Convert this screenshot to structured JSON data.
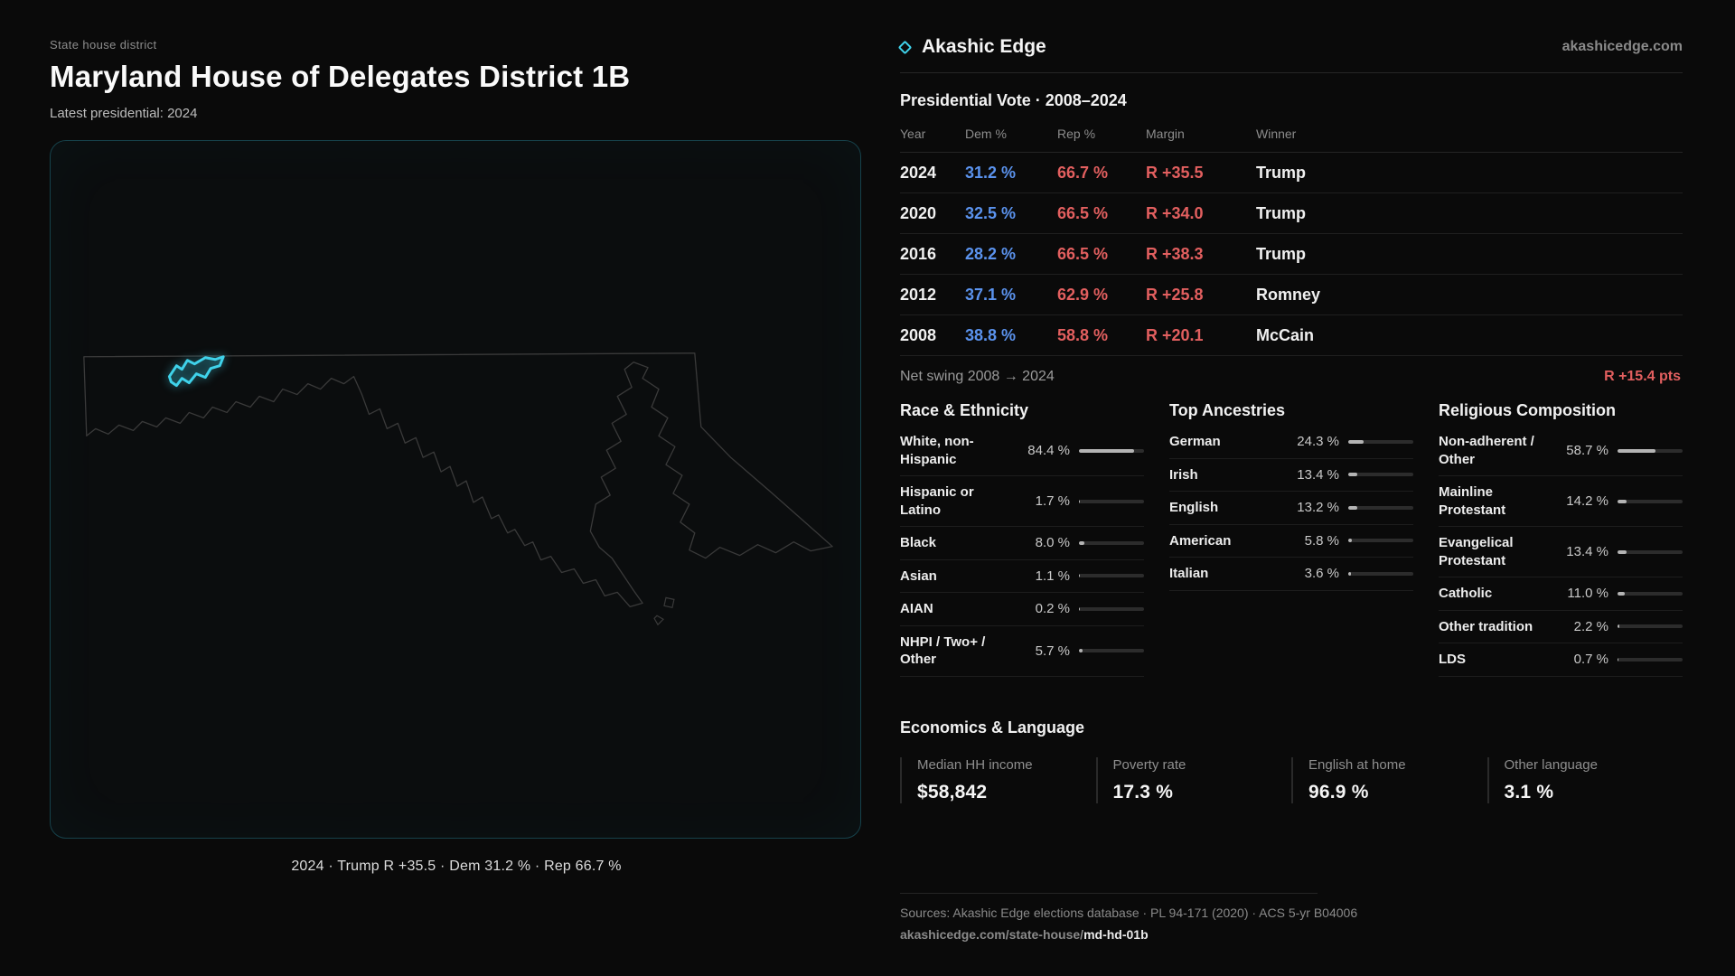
{
  "colors": {
    "accent_cyan": "#3fd2ea",
    "dem_blue": "#5b93ee",
    "rep_red": "#e25f5f"
  },
  "hero": {
    "eyebrow": "State house district",
    "title": "Maryland House of Delegates District 1B",
    "subtitle": "Latest presidential: 2024",
    "map_caption": "2024 · Trump R +35.5 · Dem 31.2 % · Rep 66.7 %"
  },
  "brand": {
    "name": "Akashic Edge",
    "domain": "akashicedge.com"
  },
  "vote": {
    "title": "Presidential Vote · 2008–2024",
    "columns": {
      "year": "Year",
      "dem": "Dem %",
      "rep": "Rep %",
      "margin": "Margin",
      "winner": "Winner"
    },
    "rows": [
      {
        "year": "2024",
        "dem": "31.2 %",
        "rep": "66.7 %",
        "margin": "R +35.5",
        "winner": "Trump"
      },
      {
        "year": "2020",
        "dem": "32.5 %",
        "rep": "66.5 %",
        "margin": "R +34.0",
        "winner": "Trump"
      },
      {
        "year": "2016",
        "dem": "28.2 %",
        "rep": "66.5 %",
        "margin": "R +38.3",
        "winner": "Trump"
      },
      {
        "year": "2012",
        "dem": "37.1 %",
        "rep": "62.9 %",
        "margin": "R +25.8",
        "winner": "Romney"
      },
      {
        "year": "2008",
        "dem": "38.8 %",
        "rep": "58.8 %",
        "margin": "R +20.1",
        "winner": "McCain"
      }
    ],
    "net_swing_label": "Net swing 2008 → 2024",
    "net_swing_value": "R +15.4 pts"
  },
  "race": {
    "title": "Race & Ethnicity",
    "rows": [
      {
        "label": "White, non-Hispanic",
        "value": "84.4 %",
        "pct": 84.4
      },
      {
        "label": "Hispanic or Latino",
        "value": "1.7 %",
        "pct": 1.7
      },
      {
        "label": "Black",
        "value": "8.0 %",
        "pct": 8
      },
      {
        "label": "Asian",
        "value": "1.1 %",
        "pct": 1.1
      },
      {
        "label": "AIAN",
        "value": "0.2 %",
        "pct": 0.2
      },
      {
        "label": "NHPI / Two+ / Other",
        "value": "5.7 %",
        "pct": 5.7
      }
    ]
  },
  "ancestries": {
    "title": "Top Ancestries",
    "rows": [
      {
        "label": "German",
        "value": "24.3 %",
        "pct": 24.3
      },
      {
        "label": "Irish",
        "value": "13.4 %",
        "pct": 13.4
      },
      {
        "label": "English",
        "value": "13.2 %",
        "pct": 13.2
      },
      {
        "label": "American",
        "value": "5.8 %",
        "pct": 5.8
      },
      {
        "label": "Italian",
        "value": "3.6 %",
        "pct": 3.6
      }
    ]
  },
  "religion": {
    "title": "Religious Composition",
    "rows": [
      {
        "label": "Non-adherent / Other",
        "value": "58.7 %",
        "pct": 58.7
      },
      {
        "label": "Mainline Protestant",
        "value": "14.2 %",
        "pct": 14.2
      },
      {
        "label": "Evangelical Protestant",
        "value": "13.4 %",
        "pct": 13.4
      },
      {
        "label": "Catholic",
        "value": "11.0 %",
        "pct": 11
      },
      {
        "label": "Other tradition",
        "value": "2.2 %",
        "pct": 2.2
      },
      {
        "label": "LDS",
        "value": "0.7 %",
        "pct": 0.7
      }
    ]
  },
  "economics": {
    "title": "Economics & Language",
    "stats": [
      {
        "label": "Median HH income",
        "value": "$58,842"
      },
      {
        "label": "Poverty rate",
        "value": "17.3 %"
      },
      {
        "label": "English at home",
        "value": "96.9 %"
      },
      {
        "label": "Other language",
        "value": "3.1 %"
      }
    ]
  },
  "footer": {
    "sources": "Sources: Akashic Edge elections database · PL 94-171 (2020) · ACS 5-yr B04006",
    "url_prefix": "akashicedge.com/state-house/",
    "url_slug": "md-hd-01b"
  }
}
